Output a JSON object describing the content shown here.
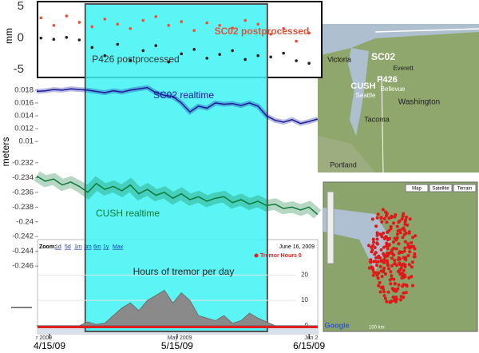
{
  "chart_data": [
    {
      "type": "scatter",
      "ylabel": "mm",
      "ylim": [
        -6,
        5.4
      ],
      "yticks": [
        5,
        0,
        -5
      ],
      "xlim": [
        -3,
        63
      ],
      "x": [
        -2,
        1,
        4,
        7,
        10,
        13,
        16,
        19,
        22,
        25,
        28,
        31,
        34,
        37,
        40,
        43,
        46,
        49,
        52,
        55,
        58,
        61
      ],
      "series": [
        {
          "name": "SC02 postprocessed",
          "color": "#e0533a",
          "values": [
            3.2,
            2.0,
            3.5,
            2.5,
            1.8,
            3.0,
            2.2,
            1.5,
            2.8,
            3.4,
            2.0,
            2.6,
            1.2,
            2.4,
            2.0,
            1.6,
            2.8,
            2.2,
            0.6,
            1.5,
            -0.5,
            0.8
          ]
        },
        {
          "name": "P426 postprocessed",
          "color": "#222222",
          "values": [
            0.0,
            -0.2,
            0.1,
            -0.3,
            -1.5,
            -2.8,
            -1.0,
            -3.5,
            -2.0,
            -1.2,
            -3.8,
            -2.5,
            -1.8,
            -3.2,
            -2.6,
            -2.0,
            -3.4,
            -2.8,
            -3.0,
            -2.4,
            -3.6,
            -4.0
          ]
        }
      ]
    },
    {
      "type": "line",
      "ylabel": "meters",
      "ylim": [
        0.0084,
        0.0196
      ],
      "yticks": [
        0.018,
        0.016,
        0.014,
        0.012,
        0.01
      ],
      "xlim": [
        -3,
        63
      ],
      "x": [
        -3,
        -1,
        1,
        3,
        5,
        7,
        9,
        11,
        13,
        15,
        17,
        19,
        21,
        23,
        25,
        27,
        29,
        31,
        33,
        35,
        37,
        39,
        41,
        43,
        45,
        47,
        49,
        51,
        53,
        55,
        57,
        59,
        61,
        63
      ],
      "series": [
        {
          "name": "SC02 realtime",
          "color": "#1a1a9a",
          "values": [
            0.0178,
            0.0179,
            0.0181,
            0.018,
            0.0182,
            0.0181,
            0.018,
            0.0178,
            0.0176,
            0.0179,
            0.0177,
            0.018,
            0.0182,
            0.0184,
            0.0176,
            0.0172,
            0.017,
            0.016,
            0.0146,
            0.0155,
            0.0152,
            0.016,
            0.0158,
            0.0159,
            0.0156,
            0.016,
            0.0155,
            0.014,
            0.0133,
            0.013,
            0.0134,
            0.0128,
            0.0131,
            0.0135
          ]
        }
      ]
    },
    {
      "type": "line",
      "ylim": [
        -0.2475,
        -0.2305
      ],
      "yticks": [
        -0.232,
        -0.234,
        -0.236,
        -0.238,
        -0.24,
        -0.242,
        -0.244,
        -0.246
      ],
      "xlim": [
        -3,
        63
      ],
      "x": [
        -3,
        -1,
        1,
        3,
        5,
        7,
        9,
        11,
        13,
        15,
        17,
        19,
        21,
        23,
        25,
        27,
        29,
        31,
        33,
        35,
        37,
        39,
        41,
        43,
        45,
        47,
        49,
        51,
        53,
        55,
        57,
        59,
        61,
        63
      ],
      "series": [
        {
          "name": "CUSH realtime",
          "color": "#0e7a3a",
          "values": [
            -0.2338,
            -0.2345,
            -0.2342,
            -0.235,
            -0.2346,
            -0.2352,
            -0.236,
            -0.2348,
            -0.2356,
            -0.2352,
            -0.2358,
            -0.235,
            -0.2362,
            -0.2356,
            -0.2364,
            -0.236,
            -0.2368,
            -0.2362,
            -0.237,
            -0.2366,
            -0.2372,
            -0.2368,
            -0.2366,
            -0.2374,
            -0.237,
            -0.2376,
            -0.2372,
            -0.2378,
            -0.2376,
            -0.2382,
            -0.238,
            -0.2384,
            -0.238,
            -0.239
          ]
        }
      ]
    },
    {
      "type": "area",
      "title": "Hours of tremor per day",
      "ylim": [
        -1,
        34
      ],
      "yticks": [
        0,
        10,
        20
      ],
      "xlim": [
        -3,
        63
      ],
      "highlight": [
        8.4,
        51.2
      ],
      "zoom_label": "Zoom:",
      "zoom_options": [
        "1d",
        "5d",
        "1m",
        "3m",
        "6m",
        "1y",
        "Max"
      ],
      "date_label": "June 16, 2009",
      "legend_label": "Tremor Hours 0",
      "navigator_ticks": [
        {
          "value": -1.3,
          "label": "r 2009"
        },
        {
          "value": 30.6,
          "label": "May 2009"
        },
        {
          "value": 61.5,
          "label": "Jun 2"
        }
      ],
      "xticks": [
        {
          "value": 0,
          "label": "4/15/09"
        },
        {
          "value": 30,
          "label": "5/15/09"
        },
        {
          "value": 61,
          "label": "6/15/09"
        }
      ],
      "x": [
        -3,
        -1,
        1,
        3,
        5,
        7,
        9,
        11,
        13,
        15,
        17,
        19,
        21,
        23,
        25,
        27,
        29,
        31,
        33,
        35,
        37,
        39,
        41,
        43,
        45,
        47,
        49,
        51,
        53,
        55,
        57,
        59,
        61,
        63
      ],
      "series": [
        {
          "name": "Tremor Hours",
          "color": "#8a8a8a",
          "values": [
            0,
            0,
            0,
            0,
            0,
            0,
            1.5,
            0.5,
            1,
            4,
            7,
            9,
            6,
            10,
            12,
            14,
            9,
            13,
            10,
            4,
            3,
            2,
            4,
            1,
            2,
            5,
            3,
            1.5,
            0,
            0,
            0,
            0,
            0,
            0
          ]
        }
      ]
    }
  ],
  "maps": {
    "top": {
      "labels": [
        "Victoria",
        "SC02",
        "CUSH",
        "P426",
        "Everett",
        "Seattle",
        "Bellevue",
        "Washington",
        "Tacoma",
        "Portland"
      ]
    },
    "bottom": {
      "buttons": [
        "Map",
        "Satellite",
        "Terrain"
      ],
      "logo": "Google",
      "scale": "100 km"
    }
  }
}
